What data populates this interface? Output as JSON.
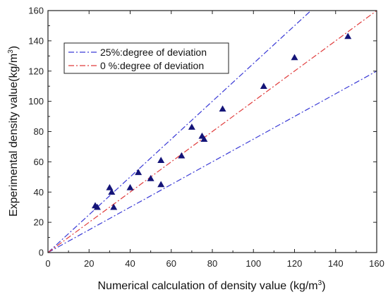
{
  "chart_data": {
    "type": "scatter",
    "xlabel": "Numerical calculation of density value  (kg/m",
    "xlabel_sup": "3",
    "xlabel_tail": ")",
    "ylabel": "Experimental density value(kg/m",
    "ylabel_sup": "3",
    "ylabel_tail": ")",
    "xlim": [
      0,
      160
    ],
    "ylim": [
      0,
      160
    ],
    "xticks": [
      0,
      20,
      40,
      60,
      80,
      100,
      120,
      140,
      160
    ],
    "yticks": [
      0,
      20,
      40,
      60,
      80,
      100,
      120,
      140,
      160
    ],
    "grid": false,
    "legend_position": "top-left",
    "lines": [
      {
        "name": "25%:degree of deviation",
        "color": "#3b3bd6",
        "style": "dash-dot",
        "slopes": [
          1.25,
          0.75
        ]
      },
      {
        "name": "0 %:degree of deviation",
        "color": "#e03b3b",
        "style": "dash-dot",
        "slopes": [
          1.0
        ]
      }
    ],
    "points": {
      "marker": "triangle",
      "color": "#141478",
      "data": [
        {
          "x": 23,
          "y": 31
        },
        {
          "x": 24,
          "y": 30
        },
        {
          "x": 30,
          "y": 43
        },
        {
          "x": 31,
          "y": 40
        },
        {
          "x": 32,
          "y": 30
        },
        {
          "x": 40,
          "y": 43
        },
        {
          "x": 44,
          "y": 53
        },
        {
          "x": 50,
          "y": 49
        },
        {
          "x": 55,
          "y": 61
        },
        {
          "x": 55,
          "y": 45
        },
        {
          "x": 65,
          "y": 64
        },
        {
          "x": 70,
          "y": 83
        },
        {
          "x": 75,
          "y": 77
        },
        {
          "x": 76,
          "y": 75
        },
        {
          "x": 85,
          "y": 95
        },
        {
          "x": 105,
          "y": 110
        },
        {
          "x": 120,
          "y": 129
        },
        {
          "x": 146,
          "y": 143
        }
      ]
    }
  }
}
